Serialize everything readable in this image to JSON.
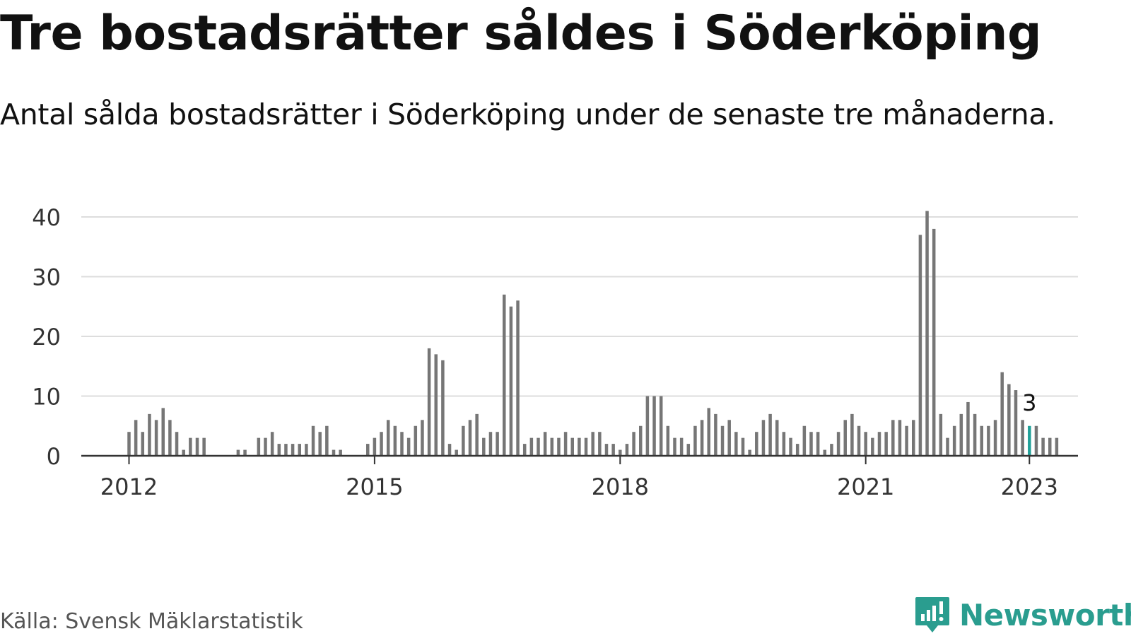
{
  "title": "Tre bostadsrätter såldes i Söderköping",
  "subtitle": "Antal sålda bostadsrätter i Söderköping under de senaste tre månaderna.",
  "source": "Källa: Svensk Mäklarstatistik",
  "brand": {
    "name": "Newsworthy",
    "icon": "newsworthy-logo-icon",
    "color": "#2a9d8f"
  },
  "colors": {
    "bar": "#767676",
    "highlight": "#1fa098",
    "grid": "#dddddd",
    "axis": "#333333"
  },
  "chart_data": {
    "type": "bar",
    "x_start": "2012-01",
    "x_end": "2023-01",
    "x_ticks": [
      "2012",
      "2015",
      "2018",
      "2021",
      "2023"
    ],
    "y_ticks": [
      0,
      10,
      20,
      30,
      40
    ],
    "ylim": [
      0,
      41
    ],
    "grid": true,
    "highlight": {
      "x": "2023-01",
      "label": "3"
    },
    "values": [
      4,
      6,
      4,
      7,
      6,
      8,
      6,
      4,
      1,
      3,
      3,
      3,
      0,
      0,
      0,
      0,
      1,
      1,
      0,
      3,
      3,
      4,
      2,
      2,
      2,
      2,
      2,
      5,
      4,
      5,
      1,
      1,
      0,
      0,
      0,
      2,
      3,
      4,
      6,
      5,
      4,
      3,
      5,
      6,
      18,
      17,
      16,
      2,
      1,
      5,
      6,
      7,
      3,
      4,
      4,
      27,
      25,
      26,
      2,
      3,
      3,
      4,
      3,
      3,
      4,
      3,
      3,
      3,
      4,
      4,
      2,
      2,
      1,
      2,
      4,
      5,
      10,
      10,
      10,
      5,
      3,
      3,
      2,
      5,
      6,
      8,
      7,
      5,
      6,
      4,
      3,
      1,
      4,
      6,
      7,
      6,
      4,
      3,
      2,
      5,
      4,
      4,
      1,
      2,
      4,
      6,
      7,
      5,
      4,
      3,
      4,
      4,
      6,
      6,
      5,
      6,
      37,
      41,
      38,
      7,
      3,
      5,
      7,
      9,
      7,
      5,
      5,
      6,
      14,
      12,
      11,
      6,
      5,
      5,
      3,
      3,
      3
    ]
  }
}
